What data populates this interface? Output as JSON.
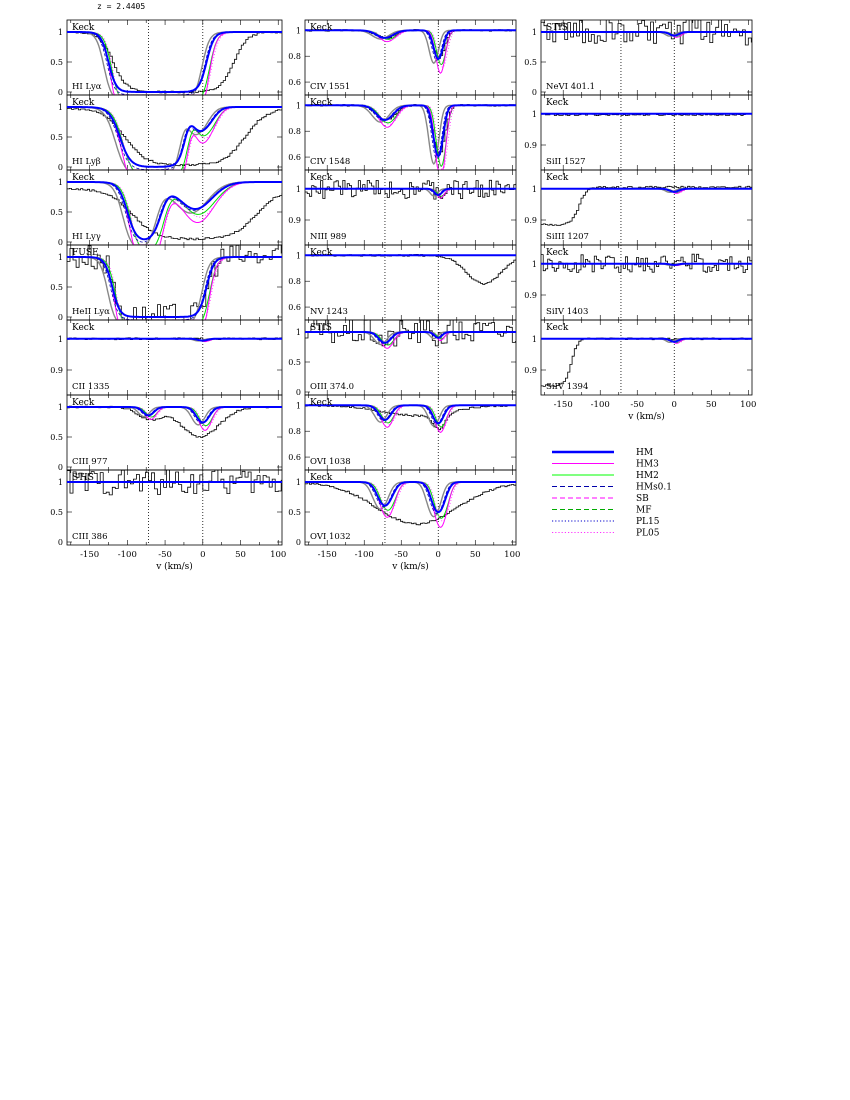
{
  "figure": {
    "redshift_label": "z = 2.4405",
    "x_axis_label": "v (km/s)",
    "instruments": [
      "Keck",
      "STIS",
      "FUSE"
    ]
  },
  "chart_data": {
    "type": "line",
    "x_range": [
      -180,
      105
    ],
    "x_ticks": [
      -150,
      -100,
      -50,
      0,
      50,
      100
    ],
    "vertical_reference_lines": [
      -72,
      0
    ],
    "legend": {
      "placement": "right, below the third panel column",
      "entries": [
        {
          "name": "HM",
          "color": "#0000ff",
          "style": "solid-thick"
        },
        {
          "name": "HM3",
          "color": "#ff00ff",
          "style": "solid"
        },
        {
          "name": "HM2",
          "color": "#00ff00",
          "style": "solid"
        },
        {
          "name": "HMs0.1",
          "color": "#0000aa",
          "style": "dashed"
        },
        {
          "name": "SB",
          "color": "#ff00ff",
          "style": "dashed"
        },
        {
          "name": "MF",
          "color": "#00aa00",
          "style": "dashed"
        },
        {
          "name": "PL15",
          "color": "#0000cc",
          "style": "dotted"
        },
        {
          "name": "PL05",
          "color": "#ff33ff",
          "style": "dotted"
        }
      ]
    },
    "panels": [
      {
        "col": 0,
        "row": 0,
        "ion": "HI Lyα",
        "instrument": "Keck",
        "ylim": [
          -0.05,
          1.2
        ],
        "yticks": [
          "0",
          "0.5",
          "1"
        ]
      },
      {
        "col": 0,
        "row": 1,
        "ion": "HI Lyβ",
        "instrument": "Keck",
        "ylim": [
          -0.05,
          1.2
        ],
        "yticks": [
          "0",
          "0.5",
          "1"
        ]
      },
      {
        "col": 0,
        "row": 2,
        "ion": "HI Lyγ",
        "instrument": "Keck",
        "ylim": [
          -0.05,
          1.2
        ],
        "yticks": [
          "0",
          "0.5",
          "1"
        ]
      },
      {
        "col": 0,
        "row": 3,
        "ion": "HeII Lyα",
        "instrument": "FUSE",
        "ylim": [
          -0.05,
          1.2
        ],
        "yticks": [
          "0",
          "0.5",
          "1"
        ]
      },
      {
        "col": 0,
        "row": 4,
        "ion": "CII 1335",
        "instrument": "Keck",
        "ylim": [
          0.82,
          1.06
        ],
        "yticks": [
          "0.9",
          "1"
        ]
      },
      {
        "col": 0,
        "row": 5,
        "ion": "CIII 977",
        "instrument": "Keck",
        "ylim": [
          -0.05,
          1.2
        ],
        "yticks": [
          "0",
          "0.5",
          "1"
        ]
      },
      {
        "col": 0,
        "row": 6,
        "ion": "CIII 386",
        "instrument": "STIS",
        "ylim": [
          -0.05,
          1.2
        ],
        "yticks": [
          "0",
          "0.5",
          "1"
        ]
      },
      {
        "col": 1,
        "row": 0,
        "ion": "CIV 1551",
        "instrument": "Keck",
        "ylim": [
          0.5,
          1.08
        ],
        "yticks": [
          "0.6",
          "0.8",
          "1"
        ]
      },
      {
        "col": 1,
        "row": 1,
        "ion": "CIV 1548",
        "instrument": "Keck",
        "ylim": [
          0.5,
          1.08
        ],
        "yticks": [
          "0.6",
          "0.8",
          "1"
        ]
      },
      {
        "col": 1,
        "row": 2,
        "ion": "NIII 989",
        "instrument": "Keck",
        "ylim": [
          0.82,
          1.06
        ],
        "yticks": [
          "0.9",
          "1"
        ]
      },
      {
        "col": 1,
        "row": 3,
        "ion": "NV 1243",
        "instrument": "Keck",
        "ylim": [
          0.5,
          1.08
        ],
        "yticks": [
          "0.6",
          "0.8",
          "1"
        ]
      },
      {
        "col": 1,
        "row": 4,
        "ion": "OIII 374.0",
        "instrument": "STIS",
        "ylim": [
          -0.05,
          1.2
        ],
        "yticks": [
          "0",
          "0.5",
          "1"
        ]
      },
      {
        "col": 1,
        "row": 5,
        "ion": "OVI 1038",
        "instrument": "Keck",
        "ylim": [
          0.5,
          1.08
        ],
        "yticks": [
          "0.6",
          "0.8",
          "1"
        ]
      },
      {
        "col": 1,
        "row": 6,
        "ion": "OVI 1032",
        "instrument": "Keck",
        "ylim": [
          -0.05,
          1.2
        ],
        "yticks": [
          "0",
          "0.5",
          "1"
        ]
      },
      {
        "col": 2,
        "row": 0,
        "ion": "NeVI 401.1",
        "instrument": "STIS",
        "ylim": [
          -0.05,
          1.2
        ],
        "yticks": [
          "0",
          "0.5",
          "1"
        ]
      },
      {
        "col": 2,
        "row": 1,
        "ion": "SiII 1527",
        "instrument": "Keck",
        "ylim": [
          0.82,
          1.06
        ],
        "yticks": [
          "0.9",
          "1"
        ]
      },
      {
        "col": 2,
        "row": 2,
        "ion": "SiIII 1207",
        "instrument": "Keck",
        "ylim": [
          0.82,
          1.06
        ],
        "yticks": [
          "0.9",
          "1"
        ]
      },
      {
        "col": 2,
        "row": 3,
        "ion": "SiIV 1403",
        "instrument": "Keck",
        "ylim": [
          0.82,
          1.06
        ],
        "yticks": [
          "0.9",
          "1"
        ]
      },
      {
        "col": 2,
        "row": 4,
        "ion": "SiIV 1394",
        "instrument": "Keck",
        "ylim": [
          0.82,
          1.06
        ],
        "yticks": [
          "0.9",
          "1"
        ]
      }
    ]
  }
}
